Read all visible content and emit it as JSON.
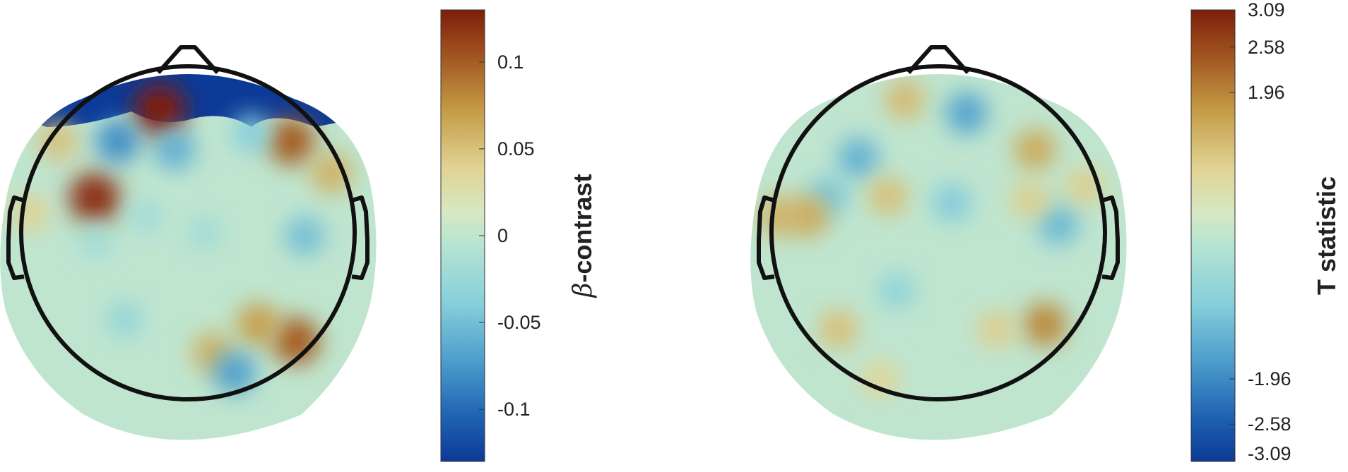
{
  "chart_data": [
    {
      "type": "heatmap",
      "subtype": "scalp-topography",
      "title": "",
      "colorbar": {
        "title_symbol": "β",
        "title_text": "-contrast",
        "range": [
          -0.13,
          0.13
        ],
        "ticks": [
          0.1,
          0.05,
          0,
          -0.05,
          -0.1
        ],
        "tick_labels": [
          "0.1",
          "0.05",
          "0",
          "-0.05",
          "-0.1"
        ]
      },
      "hotspots": [
        {
          "x": -0.17,
          "y": 0.74,
          "value": 0.13
        },
        {
          "x": -0.56,
          "y": 0.21,
          "value": 0.12
        },
        {
          "x": 0.62,
          "y": 0.55,
          "value": 0.1
        },
        {
          "x": -0.78,
          "y": 0.55,
          "value": 0.05
        },
        {
          "x": 0.86,
          "y": 0.36,
          "value": 0.06
        },
        {
          "x": 0.65,
          "y": -0.65,
          "value": 0.1
        },
        {
          "x": 0.42,
          "y": -0.55,
          "value": 0.07
        },
        {
          "x": 0.15,
          "y": -0.72,
          "value": 0.06
        },
        {
          "x": -0.95,
          "y": 0.12,
          "value": 0.04
        },
        {
          "x": -0.42,
          "y": 0.55,
          "value": -0.08
        },
        {
          "x": -0.08,
          "y": 0.5,
          "value": -0.06
        },
        {
          "x": 0.38,
          "y": 0.6,
          "value": -0.04
        },
        {
          "x": 0.28,
          "y": -0.84,
          "value": -0.07
        },
        {
          "x": 0.7,
          "y": -0.02,
          "value": -0.05
        },
        {
          "x": -0.38,
          "y": -0.52,
          "value": -0.03
        },
        {
          "x": -0.25,
          "y": 0.1,
          "value": -0.02
        },
        {
          "x": 0.1,
          "y": 0.0,
          "value": -0.02
        },
        {
          "x": -0.55,
          "y": -0.05,
          "value": -0.02
        }
      ]
    },
    {
      "type": "heatmap",
      "subtype": "scalp-topography",
      "title": "",
      "colorbar": {
        "title_text": "T statistic",
        "range": [
          -3.09,
          3.09
        ],
        "ticks": [
          3.09,
          2.58,
          1.96,
          -1.96,
          -2.58,
          -3.09
        ],
        "tick_labels": [
          "3.09",
          "2.58",
          "1.96",
          "-1.96",
          "-2.58",
          "-3.09"
        ]
      },
      "hotspots": [
        {
          "x": -0.2,
          "y": 0.8,
          "value": 1.3
        },
        {
          "x": 0.17,
          "y": 0.72,
          "value": -1.6
        },
        {
          "x": -0.48,
          "y": 0.45,
          "value": -1.4
        },
        {
          "x": -0.66,
          "y": 0.22,
          "value": -1.1
        },
        {
          "x": 0.08,
          "y": 0.18,
          "value": -1.0
        },
        {
          "x": 0.72,
          "y": 0.05,
          "value": -1.3
        },
        {
          "x": -0.25,
          "y": -0.35,
          "value": -0.8
        },
        {
          "x": -0.3,
          "y": 0.22,
          "value": 1.2
        },
        {
          "x": -0.78,
          "y": 0.1,
          "value": 1.5
        },
        {
          "x": 0.58,
          "y": 0.5,
          "value": 1.5
        },
        {
          "x": 0.55,
          "y": 0.2,
          "value": 1.0
        },
        {
          "x": 0.64,
          "y": -0.55,
          "value": 1.9
        },
        {
          "x": 0.35,
          "y": -0.58,
          "value": 1.0
        },
        {
          "x": -0.6,
          "y": -0.58,
          "value": 1.2
        },
        {
          "x": -0.95,
          "y": 0.1,
          "value": 1.4
        },
        {
          "x": 0.88,
          "y": 0.28,
          "value": 1.0
        },
        {
          "x": -0.35,
          "y": -0.88,
          "value": 0.9
        }
      ]
    }
  ]
}
